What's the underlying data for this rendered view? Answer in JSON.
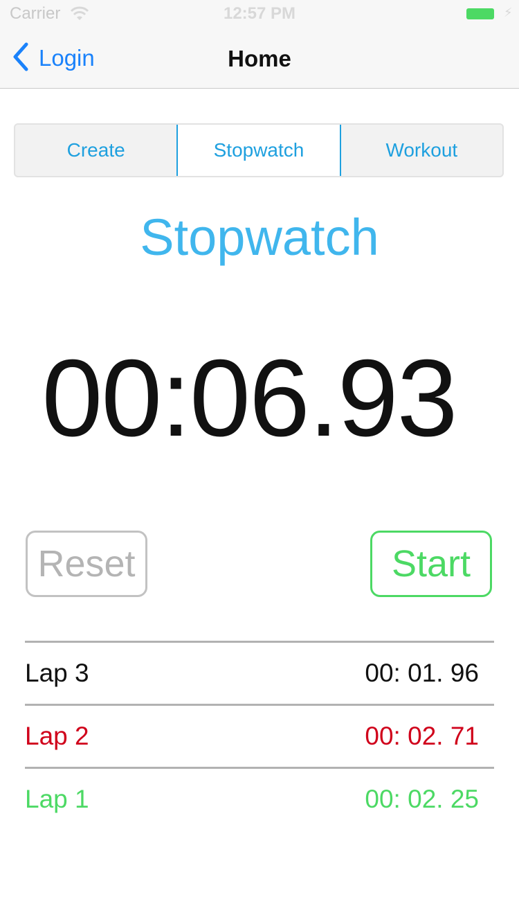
{
  "status_bar": {
    "carrier": "Carrier",
    "time": "12:57 PM",
    "battery_color": "#4cd964"
  },
  "nav": {
    "back_label": "Login",
    "title": "Home",
    "tint": "#1a82fb"
  },
  "segments": [
    {
      "label": "Create",
      "selected": false
    },
    {
      "label": "Stopwatch",
      "selected": true
    },
    {
      "label": "Workout",
      "selected": false
    }
  ],
  "screen_title": "Stopwatch",
  "timer": "00:06.93",
  "buttons": {
    "reset_label": "Reset",
    "start_label": "Start"
  },
  "laps": [
    {
      "label": "Lap 3",
      "time": "00: 01. 96",
      "color": "#111111"
    },
    {
      "label": "Lap 2",
      "time": "00: 02. 71",
      "color": "#d0021b"
    },
    {
      "label": "Lap 1",
      "time": "00: 02. 25",
      "color": "#4cd964"
    }
  ],
  "colors": {
    "accent": "#40b6ed",
    "segment_tint": "#1ea0df",
    "start_green": "#4cd964",
    "reset_gray": "#b4b4b4"
  }
}
